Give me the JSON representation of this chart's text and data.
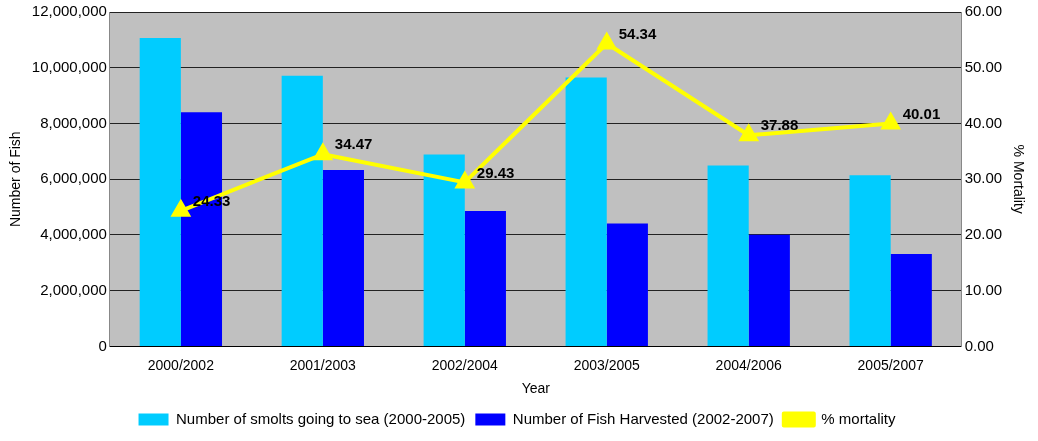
{
  "chart_data": {
    "type": "bar",
    "xlabel": "Year",
    "ylabel": "Number of Fish",
    "y2label": "% Mortality",
    "categories": [
      "2000/2002",
      "2001/2003",
      "2002/2004",
      "2003/2005",
      "2004/2006",
      "2005/2007"
    ],
    "series": [
      {
        "name": "Number of smolts going to sea (2000-2005)",
        "color": "#00ccff",
        "values": [
          11070000,
          9710000,
          6890000,
          9650000,
          6490000,
          6140000
        ]
      },
      {
        "name": "Number of Fish Harvested (2002-2007)",
        "color": "#0000ff",
        "values": [
          8400000,
          6330000,
          4860000,
          4410000,
          4010000,
          3320000
        ]
      },
      {
        "name": "% mortality",
        "type": "line",
        "axis": "y2",
        "color": "#ffff00",
        "values": [
          24.33,
          34.47,
          29.43,
          54.34,
          37.88,
          40.01
        ],
        "value_labels": [
          "24.33",
          "34.47",
          "29.43",
          "54.34",
          "37.88",
          "40.01"
        ]
      }
    ],
    "ylim": [
      0,
      12000000
    ],
    "yticks": [
      {
        "value": 0,
        "label": "0"
      },
      {
        "value": 2000000,
        "label": "2,000,000"
      },
      {
        "value": 4000000,
        "label": "4,000,000"
      },
      {
        "value": 6000000,
        "label": "6,000,000"
      },
      {
        "value": 8000000,
        "label": "8,000,000"
      },
      {
        "value": 10000000,
        "label": "10,000,000"
      },
      {
        "value": 12000000,
        "label": "12,000,000"
      }
    ],
    "y2lim": [
      0,
      60
    ],
    "y2ticks": [
      {
        "value": 0,
        "label": "0.00"
      },
      {
        "value": 10,
        "label": "10.00"
      },
      {
        "value": 20,
        "label": "20.00"
      },
      {
        "value": 30,
        "label": "30.00"
      },
      {
        "value": 40,
        "label": "40.00"
      },
      {
        "value": 50,
        "label": "50.00"
      },
      {
        "value": 60,
        "label": "60.00"
      }
    ],
    "grid": "y",
    "legend": "bottom",
    "marker": "triangle",
    "line_style": "solid"
  }
}
